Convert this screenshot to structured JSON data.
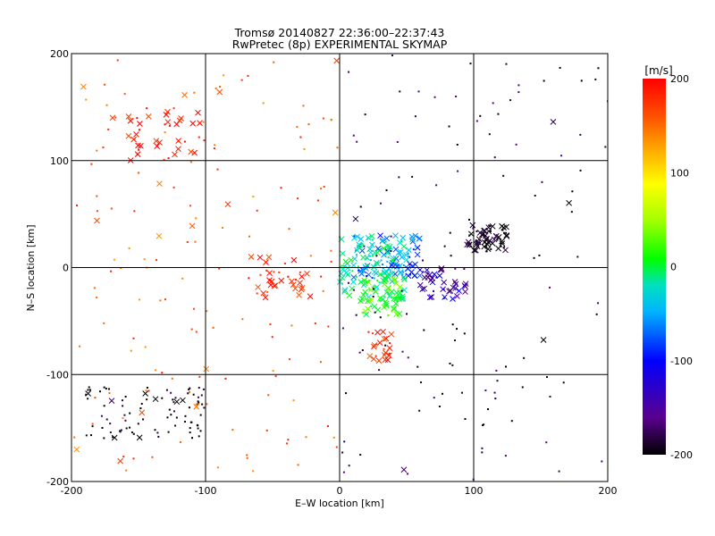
{
  "chart_data": {
    "type": "scatter",
    "title": "Tromsø 20140827 22:36:00–22:37:43",
    "subtitle": "RwPretec (8p) EXPERIMENTAL SKYMAP",
    "xlabel": "E–W location [km]",
    "ylabel": "N–S location [km]",
    "xlim": [
      -200,
      200
    ],
    "ylim": [
      -200,
      200
    ],
    "xticks": [
      -200,
      -100,
      0,
      100,
      200
    ],
    "yticks": [
      -200,
      -100,
      0,
      100,
      200
    ],
    "grid": true,
    "colorbar": {
      "label": "[m/s]",
      "range": [
        -200,
        200
      ],
      "ticks": [
        200,
        100,
        0,
        -100,
        -200
      ],
      "colors": [
        "#000000",
        "#5a0090",
        "#0000ff",
        "#00b4ff",
        "#00e0c0",
        "#00ff00",
        "#a0ff00",
        "#ffff00",
        "#ffb400",
        "#ff5000",
        "#ff0000"
      ]
    },
    "markers": {
      "point": "dot",
      "strong": "x"
    },
    "clusters": [
      {
        "name": "red-arc-nw",
        "x": [
          -160,
          -100
        ],
        "y": [
          100,
          150
        ],
        "value": 190,
        "count": 40,
        "marker": "x"
      },
      {
        "name": "red-west",
        "x": [
          -70,
          -20
        ],
        "y": [
          -30,
          10
        ],
        "value": 185,
        "count": 35,
        "marker": "x"
      },
      {
        "name": "red-south",
        "x": [
          20,
          40
        ],
        "y": [
          -90,
          -60
        ],
        "value": 180,
        "count": 25,
        "marker": "x"
      },
      {
        "name": "blue-center",
        "x": [
          10,
          60
        ],
        "y": [
          -10,
          30
        ],
        "value": -90,
        "count": 90,
        "marker": "x"
      },
      {
        "name": "cyan-center",
        "x": [
          0,
          50
        ],
        "y": [
          -30,
          30
        ],
        "value": -30,
        "count": 110,
        "marker": "x"
      },
      {
        "name": "green-center",
        "x": [
          15,
          45
        ],
        "y": [
          -45,
          -10
        ],
        "value": 10,
        "count": 50,
        "marker": "x"
      },
      {
        "name": "purple-east",
        "x": [
          60,
          95
        ],
        "y": [
          -30,
          0
        ],
        "value": -150,
        "count": 40,
        "marker": "x"
      },
      {
        "name": "black-east",
        "x": [
          95,
          125
        ],
        "y": [
          15,
          40
        ],
        "value": -200,
        "count": 70,
        "marker": "x"
      },
      {
        "name": "black-southwest",
        "x": [
          -190,
          -100
        ],
        "y": [
          -160,
          -110
        ],
        "value": -200,
        "count": 90,
        "marker": "dot"
      },
      {
        "name": "red-scatter-west",
        "x": [
          -200,
          0
        ],
        "y": [
          -200,
          200
        ],
        "value": 160,
        "count": 150,
        "marker": "dot"
      },
      {
        "name": "mixed-scatter-east",
        "x": [
          0,
          200
        ],
        "y": [
          -200,
          200
        ],
        "value": -180,
        "count": 130,
        "marker": "dot"
      }
    ]
  }
}
